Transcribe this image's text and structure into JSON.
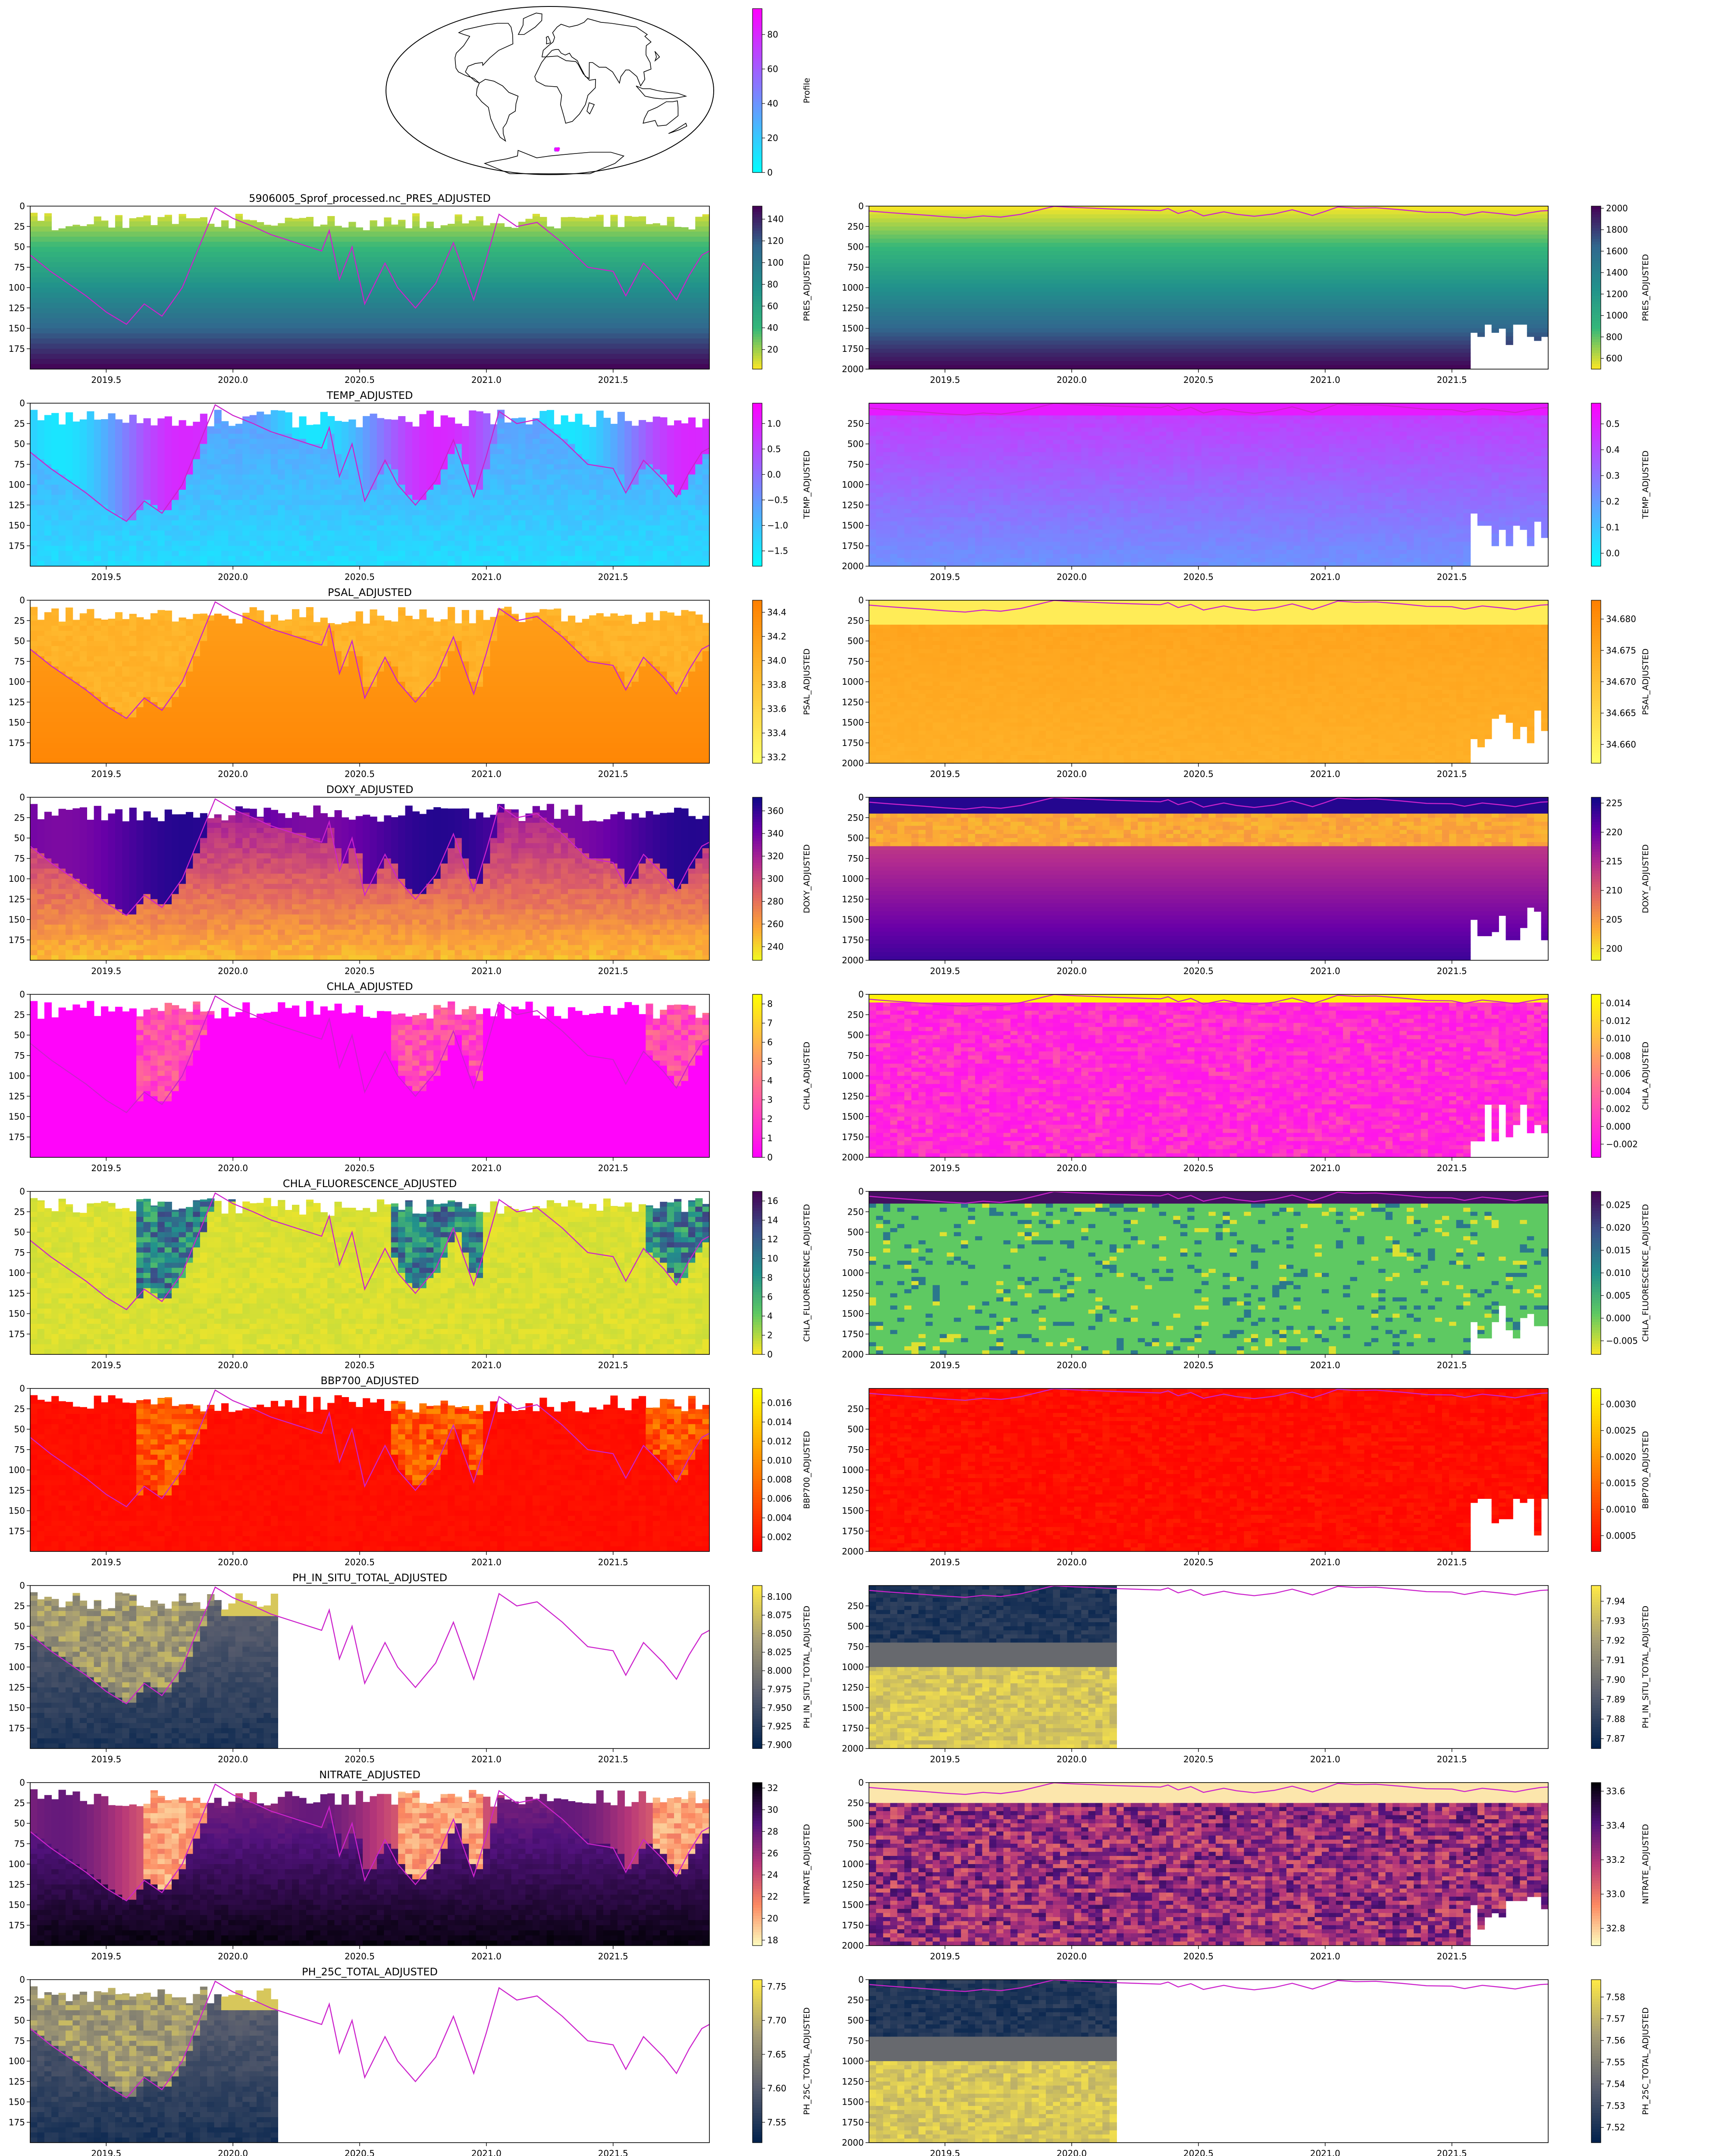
{
  "map": {
    "colorbar_label": "Profile",
    "colorbar_ticks": [
      0,
      20,
      40,
      60,
      80
    ],
    "colorbar_range": [
      0,
      95
    ],
    "colorbar_colors": [
      "#00ffff",
      "#ff00ff"
    ],
    "float_position": {
      "lon": 13,
      "lat": -63
    }
  },
  "chart_data": {
    "type": "heatmap",
    "xlim": [
      2019.2,
      2021.88
    ],
    "x_ticks": [
      2019.5,
      2020.0,
      2020.5,
      2021.0,
      2021.5
    ],
    "x_tick_labels": [
      "2019.5",
      "2020.0",
      "2020.5",
      "2021.0",
      "2021.5"
    ],
    "shallow_ylim": [
      200,
      0
    ],
    "shallow_y_ticks": [
      0,
      25,
      50,
      75,
      100,
      125,
      150,
      175
    ],
    "deep_ylim": [
      2000,
      0
    ],
    "deep_y_ticks": [
      0,
      250,
      500,
      750,
      1000,
      1250,
      1500,
      1750,
      2000
    ],
    "deep_y_ticks_alt": [
      250,
      500,
      750,
      1000,
      1250,
      1500,
      1750,
      2000
    ],
    "mld_line_color": "#cc22cc",
    "mld": {
      "x": [
        2019.2,
        2019.28,
        2019.35,
        2019.42,
        2019.5,
        2019.58,
        2019.65,
        2019.72,
        2019.8,
        2019.88,
        2019.93,
        2020.0,
        2020.08,
        2020.15,
        2020.25,
        2020.35,
        2020.38,
        2020.42,
        2020.47,
        2020.52,
        2020.6,
        2020.65,
        2020.72,
        2020.8,
        2020.87,
        2020.95,
        2021.0,
        2021.05,
        2021.12,
        2021.2,
        2021.3,
        2021.4,
        2021.5,
        2021.55,
        2021.62,
        2021.7,
        2021.75,
        2021.8,
        2021.85,
        2021.88
      ],
      "depth": [
        60,
        80,
        95,
        110,
        130,
        145,
        120,
        135,
        100,
        40,
        2,
        15,
        25,
        35,
        45,
        55,
        30,
        90,
        50,
        120,
        70,
        100,
        125,
        95,
        45,
        115,
        65,
        10,
        25,
        20,
        45,
        75,
        80,
        110,
        70,
        95,
        115,
        85,
        60,
        55
      ]
    },
    "rows": [
      {
        "title": "5906005_Sprof_processed.nc_PRES_ADJUSTED",
        "ylabel": "PRES_ADJUSTED",
        "colors": [
          "#fde725",
          "#35b779",
          "#21918c",
          "#31688e",
          "#440154"
        ],
        "shallow_ticks": [
          20,
          40,
          60,
          80,
          100,
          120,
          140
        ],
        "shallow_range": [
          2,
          152
        ],
        "deep_ticks": [
          600,
          800,
          1000,
          1200,
          1400,
          1600,
          1800,
          2000
        ],
        "deep_range": [
          500,
          2020
        ],
        "deep_ytick_set": "full"
      },
      {
        "title": "TEMP_ADJUSTED",
        "ylabel": "TEMP_ADJUSTED",
        "colors": [
          "#00ffff",
          "#ff00ff"
        ],
        "shallow_ticks": [
          -1.5,
          -1.0,
          -0.5,
          0.0,
          0.5,
          1.0
        ],
        "shallow_range": [
          -1.8,
          1.4
        ],
        "deep_ticks": [
          0.0,
          0.1,
          0.2,
          0.3,
          0.4,
          0.5
        ],
        "deep_range": [
          -0.05,
          0.58
        ],
        "deep_ytick_set": "alt"
      },
      {
        "title": "PSAL_ADJUSTED",
        "ylabel": "PSAL_ADJUSTED",
        "colors": [
          "#ffff66",
          "#ff8000"
        ],
        "shallow_ticks": [
          33.2,
          33.4,
          33.6,
          33.8,
          34.0,
          34.2,
          34.4
        ],
        "shallow_range": [
          33.15,
          34.5
        ],
        "deep_ticks": [
          34.66,
          34.665,
          34.67,
          34.675,
          34.68
        ],
        "deep_range": [
          34.657,
          34.683
        ],
        "deep_ytick_set": "full"
      },
      {
        "title": "DOXY_ADJUSTED",
        "ylabel": "DOXY_ADJUSTED",
        "colors": [
          "#f0f921",
          "#fca636",
          "#e16462",
          "#b12a90",
          "#6a00a8",
          "#0d0887"
        ],
        "shallow_ticks": [
          240,
          260,
          280,
          300,
          320,
          340,
          360
        ],
        "shallow_range": [
          228,
          372
        ],
        "deep_ticks": [
          200,
          205,
          210,
          215,
          220,
          225
        ],
        "deep_range": [
          198,
          226
        ],
        "deep_ytick_set": "full"
      },
      {
        "title": "CHLA_ADJUSTED",
        "ylabel": "CHLA_ADJUSTED",
        "colors": [
          "#ff00ff",
          "#ffff00"
        ],
        "shallow_ticks": [
          0,
          1,
          2,
          3,
          4,
          5,
          6,
          7,
          8
        ],
        "shallow_range": [
          0,
          8.5
        ],
        "deep_ticks": [
          -0.002,
          0.0,
          0.002,
          0.004,
          0.006,
          0.008,
          0.01,
          0.012,
          0.014
        ],
        "deep_range": [
          -0.0035,
          0.015
        ],
        "deep_ytick_set": "full"
      },
      {
        "title": "CHLA_FLUORESCENCE_ADJUSTED",
        "ylabel": "CHLA_FLUORESCENCE_ADJUSTED",
        "colors": [
          "#fde725",
          "#5ec962",
          "#21918c",
          "#3b528b",
          "#440154"
        ],
        "shallow_ticks": [
          0,
          2,
          4,
          6,
          8,
          10,
          12,
          14,
          16
        ],
        "shallow_range": [
          0,
          17
        ],
        "deep_ticks": [
          -0.005,
          0.0,
          0.005,
          0.01,
          0.015,
          0.02,
          0.025
        ],
        "deep_range": [
          -0.008,
          0.028
        ],
        "deep_ytick_set": "full"
      },
      {
        "title": "BBP700_ADJUSTED",
        "ylabel": "BBP700_ADJUSTED",
        "colors": [
          "#ff0000",
          "#ffff00"
        ],
        "shallow_ticks": [
          0.002,
          0.004,
          0.006,
          0.008,
          0.01,
          0.012,
          0.014,
          0.016
        ],
        "shallow_range": [
          0.0005,
          0.0175
        ],
        "deep_ticks": [
          0.0005,
          0.001,
          0.0015,
          0.002,
          0.0025,
          0.003
        ],
        "deep_range": [
          0.0002,
          0.0033
        ],
        "deep_ytick_set": "alt"
      },
      {
        "title": "PH_IN_SITU_TOTAL_ADJUSTED",
        "ylabel": "PH_IN_SITU_TOTAL_ADJUSTED",
        "colors": [
          "#00204c",
          "#575c6d",
          "#a59c74",
          "#ffea46"
        ],
        "shallow_ticks": [
          7.9,
          7.925,
          7.95,
          7.975,
          8.0,
          8.025,
          8.05,
          8.075,
          8.1
        ],
        "shallow_range": [
          7.895,
          8.115
        ],
        "deep_ticks": [
          7.87,
          7.88,
          7.89,
          7.9,
          7.91,
          7.92,
          7.93,
          7.94
        ],
        "deep_range": [
          7.865,
          7.948
        ],
        "deep_ytick_set": "alt"
      },
      {
        "title": "NITRATE_ADJUSTED",
        "ylabel": "NITRATE_ADJUSTED",
        "colors": [
          "#fcfdbf",
          "#fc8961",
          "#b73779",
          "#51127c",
          "#000004"
        ],
        "shallow_ticks": [
          18,
          20,
          22,
          24,
          26,
          28,
          30,
          32
        ],
        "shallow_range": [
          17.5,
          32.5
        ],
        "deep_ticks": [
          32.8,
          33.0,
          33.2,
          33.4,
          33.6
        ],
        "deep_range": [
          32.7,
          33.65
        ],
        "deep_ytick_set": "full"
      },
      {
        "title": "PH_25C_TOTAL_ADJUSTED",
        "ylabel": "PH_25C_TOTAL_ADJUSTED",
        "colors": [
          "#00204c",
          "#575c6d",
          "#a59c74",
          "#ffea46"
        ],
        "shallow_ticks": [
          7.55,
          7.6,
          7.65,
          7.7,
          7.75
        ],
        "shallow_range": [
          7.52,
          7.76
        ],
        "deep_ticks": [
          7.52,
          7.53,
          7.54,
          7.55,
          7.56,
          7.57,
          7.58
        ],
        "deep_range": [
          7.513,
          7.588
        ],
        "deep_ytick_set": "full"
      }
    ]
  }
}
